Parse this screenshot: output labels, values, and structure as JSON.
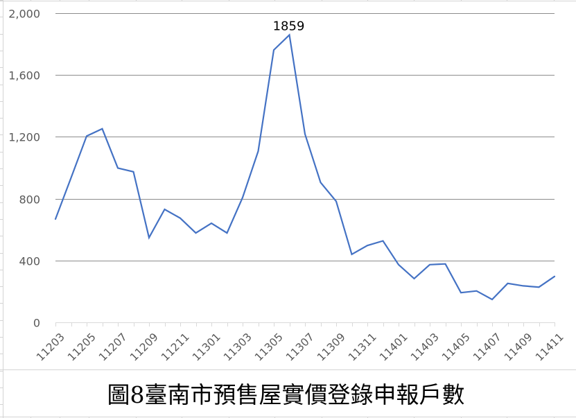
{
  "chart_data": {
    "type": "line",
    "title": "圖8臺南市預售屋實價登錄申報戶數",
    "xlabel": "",
    "ylabel": "",
    "x": [
      "11203",
      "11204",
      "11205",
      "11206",
      "11207",
      "11208",
      "11209",
      "11210",
      "11211",
      "11212",
      "11301",
      "11302",
      "11303",
      "11304",
      "11305",
      "11306",
      "11307",
      "11308",
      "11309",
      "11310",
      "11311",
      "11312",
      "11401",
      "11402",
      "11403",
      "11404",
      "11405",
      "11406",
      "11407",
      "11408",
      "11409",
      "11410",
      "11411"
    ],
    "x_tick_labels": [
      "11203",
      "11205",
      "11207",
      "11209",
      "11211",
      "11301",
      "11303",
      "11305",
      "11307",
      "11309",
      "11311",
      "11401",
      "11403",
      "11405",
      "11407",
      "11409",
      "11411"
    ],
    "series": [
      {
        "name": "申報戶數",
        "color": "#4472C4",
        "values": [
          668,
          935,
          1205,
          1252,
          998,
          974,
          548,
          731,
          674,
          578,
          641,
          578,
          807,
          1107,
          1762,
          1859,
          1218,
          905,
          783,
          440,
          497,
          527,
          373,
          283,
          373,
          378,
          192,
          203,
          148,
          252,
          236,
          228,
          297
        ]
      }
    ],
    "annotations": [
      {
        "x": "11306",
        "label": "1859"
      }
    ],
    "ylim": [
      0,
      2000
    ],
    "y_ticks": [
      0,
      400,
      800,
      1200,
      1600,
      2000
    ],
    "y_tick_labels": [
      "0",
      "400",
      "800",
      "1,200",
      "1,600",
      "2,000"
    ],
    "grid": true,
    "legend": "none"
  },
  "title": "圖8臺南市預售屋實價登錄申報戶數",
  "colors": {
    "line": "#4472C4",
    "gridline": "#8c8c8c",
    "axis": "#d9d9d9",
    "tick_label": "#595959",
    "sheet_grid": "#d4d4d4"
  }
}
